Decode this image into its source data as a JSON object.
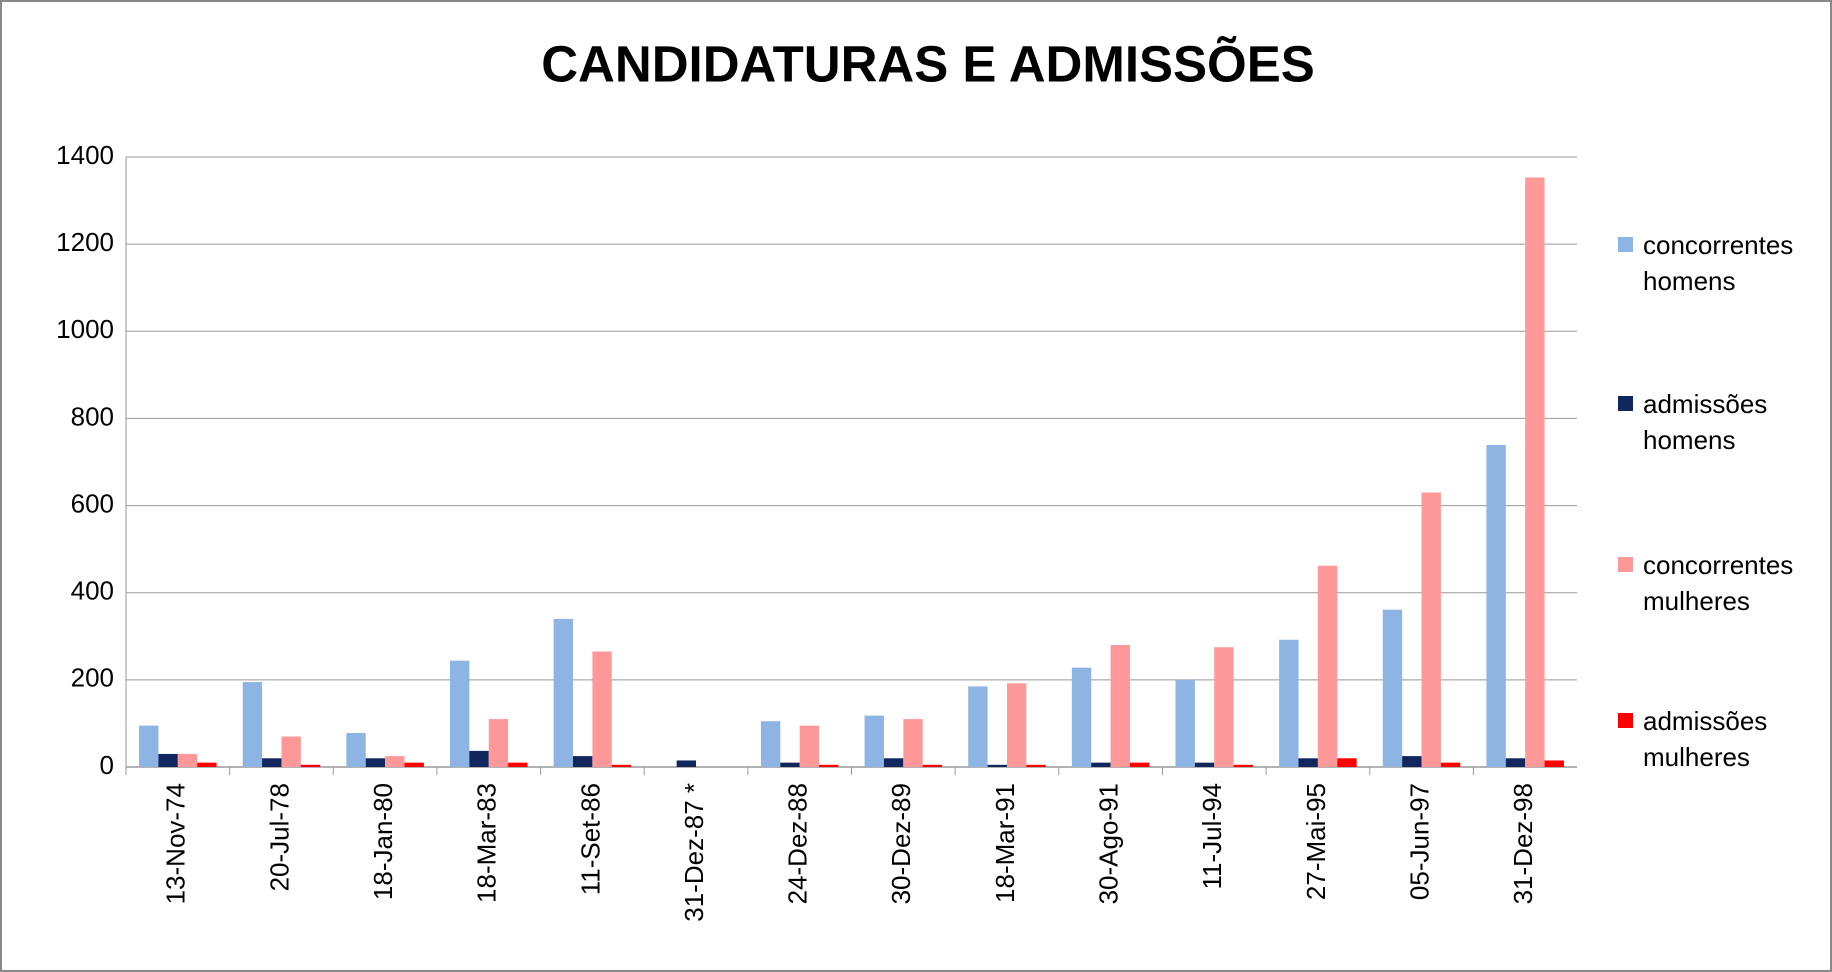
{
  "chart_data": {
    "type": "bar",
    "title": "CANDIDATURAS E ADMISSÕES",
    "categories": [
      "13-Nov-74",
      "20-Jul-78",
      "18-Jan-80",
      "18-Mar-83",
      "11-Set-86",
      "31-Dez-87 *",
      "24-Dez-88",
      "30-Dez-89",
      "18-Mar-91",
      "30-Ago-91",
      "11-Jul-94",
      "27-Mai-95",
      "05-Jun-97",
      "31-Dez-98"
    ],
    "series": [
      {
        "name": "concorrentes homens",
        "color": "#8eb4e3",
        "values": [
          95,
          195,
          78,
          244,
          340,
          0,
          105,
          118,
          185,
          228,
          200,
          292,
          361,
          739
        ]
      },
      {
        "name": "admissões homens",
        "color": "#10265c",
        "values": [
          30,
          20,
          20,
          37,
          25,
          15,
          10,
          20,
          5,
          10,
          10,
          20,
          25,
          20
        ]
      },
      {
        "name": "concorrentes mulheres",
        "color": "#ff9999",
        "values": [
          30,
          70,
          25,
          110,
          265,
          0,
          95,
          110,
          192,
          280,
          275,
          462,
          630,
          1353
        ]
      },
      {
        "name": "admissões mulheres",
        "color": "#ff0000",
        "values": [
          10,
          5,
          10,
          10,
          5,
          0,
          5,
          5,
          5,
          10,
          5,
          20,
          10,
          15
        ]
      }
    ],
    "ylim": [
      0,
      1400
    ],
    "yticks": [
      0,
      200,
      400,
      600,
      800,
      1000,
      1200,
      1400
    ],
    "grid": true,
    "legend": "right"
  }
}
